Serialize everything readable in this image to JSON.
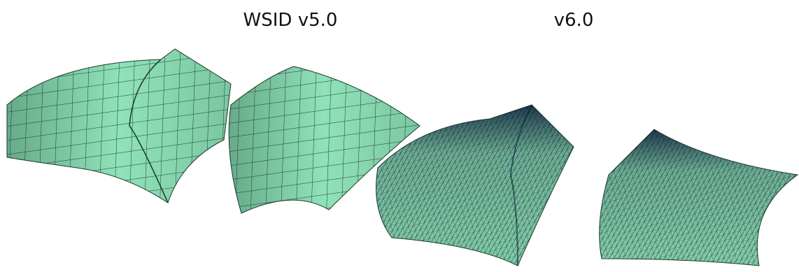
{
  "labels": [
    "WSID v5.0",
    "v6.0"
  ]
}
